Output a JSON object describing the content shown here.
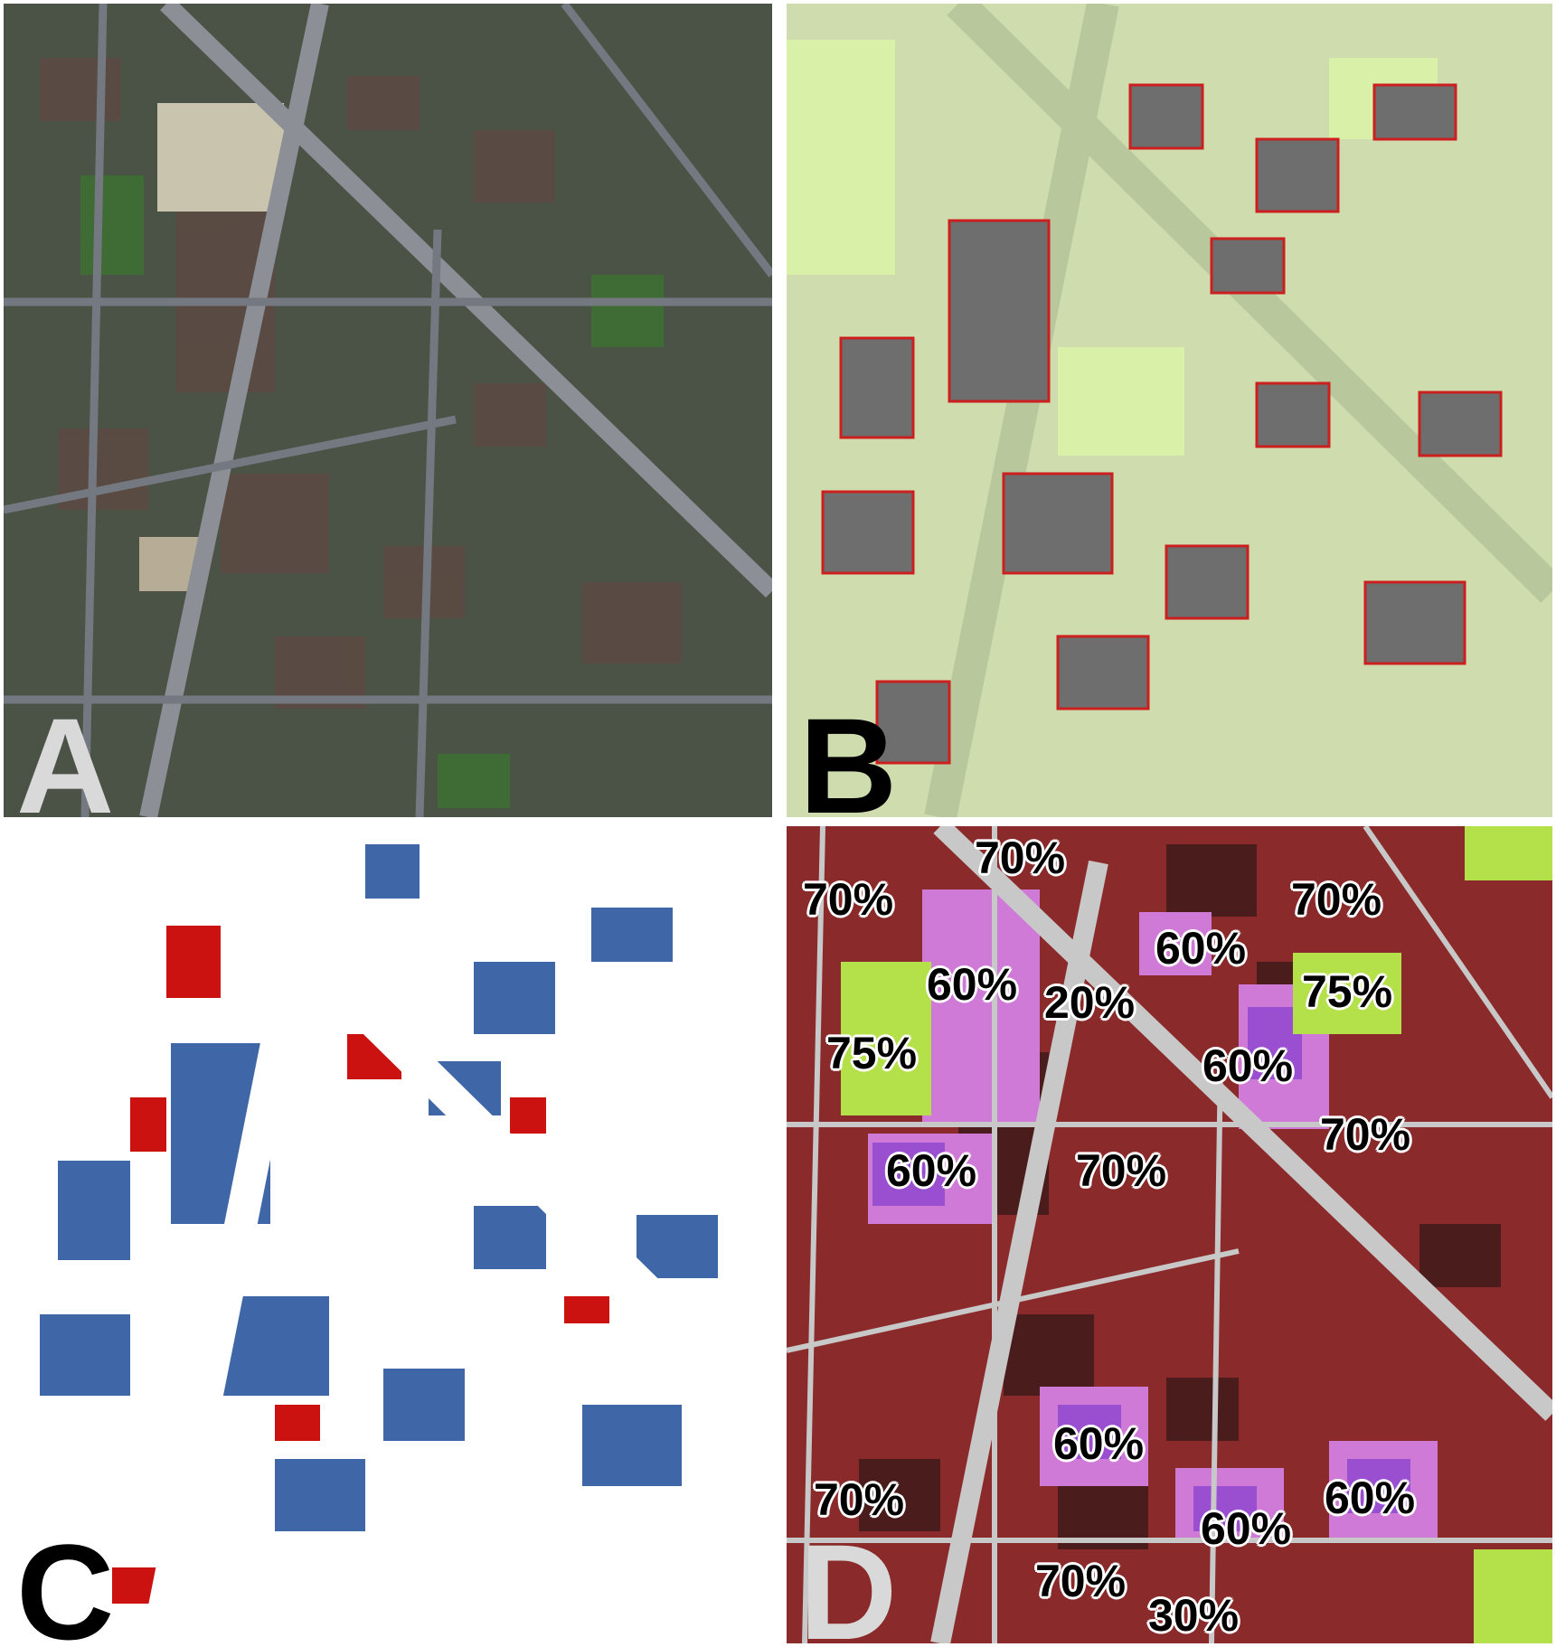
{
  "panels": {
    "a": {
      "label": "A"
    },
    "b": {
      "label": "B"
    },
    "c": {
      "label": "C"
    },
    "d": {
      "label": "D"
    }
  },
  "density_labels": [
    "70%",
    "70%",
    "70%",
    "60%",
    "60%",
    "20%",
    "75%",
    "75%",
    "60%",
    "70%",
    "60%",
    "70%",
    "60%",
    "70%",
    "60%",
    "60%",
    "70%",
    "30%"
  ],
  "colors": {
    "aerial_ground": "#4a5346",
    "aerial_road": "#8c8f95",
    "building_outline": "#cc1f1f",
    "building_fill": "#6e6e6e",
    "green_light": "#cfdcae",
    "green_park": "#d8f0a8",
    "building_class": "#3f67a8",
    "vegetation_class": "#cc1111",
    "zone_base": "#8a2a2a",
    "zone_dark": "#4a1c1c",
    "zone_purple": "#9a4fd0",
    "zone_pink": "#d07ad8",
    "zone_green": "#b4e04a",
    "road_gray": "#c8c8c8"
  }
}
